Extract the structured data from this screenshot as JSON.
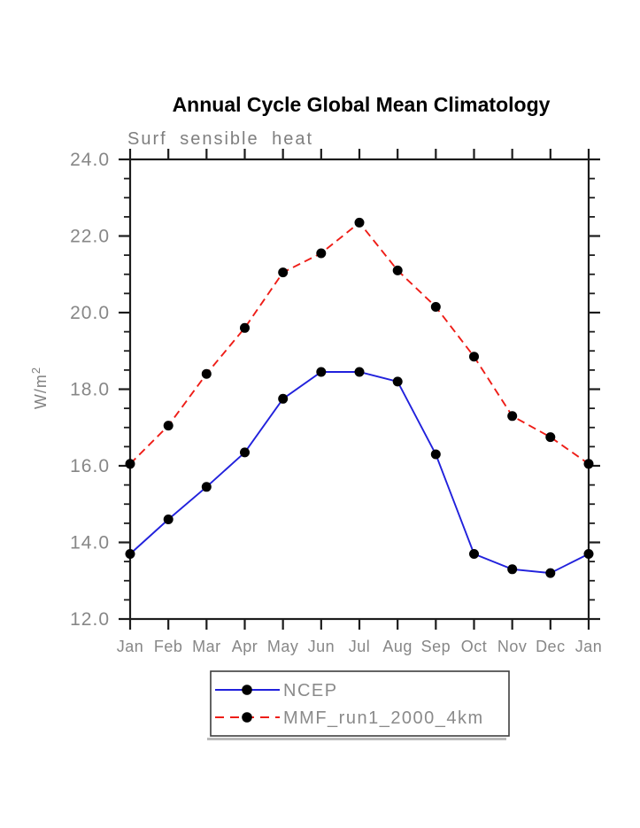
{
  "page": {
    "background_color": "#ffffff"
  },
  "chart_data": {
    "type": "line",
    "title": "Annual Cycle Global Mean Climatology",
    "subtitle": "Surf sensible heat",
    "ylabel": "W/m",
    "ylabel_sup": "2",
    "ylim": [
      12.0,
      24.0
    ],
    "ytick_major_interval": 2.0,
    "ytick_minor_interval": 0.5,
    "ytick_labels": [
      "12.0",
      "14.0",
      "16.0",
      "18.0",
      "20.0",
      "22.0",
      "24.0"
    ],
    "categories": [
      "Jan",
      "Feb",
      "Mar",
      "Apr",
      "May",
      "Jun",
      "Jul",
      "Aug",
      "Sep",
      "Oct",
      "Nov",
      "Dec",
      "Jan"
    ],
    "grid": false,
    "legend_position": "bottom-center",
    "axis_color": "#1c1c1c",
    "label_color": "#878787",
    "marker": "filled-circle",
    "marker_color": "#000000",
    "series": [
      {
        "name": "NCEP",
        "color": "#2121dc",
        "line_style": "solid",
        "values": [
          13.7,
          14.6,
          15.45,
          16.35,
          17.75,
          18.45,
          18.45,
          18.2,
          16.3,
          13.7,
          13.3,
          13.2,
          13.7
        ]
      },
      {
        "name": "MMF_run1_2000_4km",
        "color": "#ee1d17",
        "line_style": "dashed",
        "values": [
          16.05,
          17.05,
          18.4,
          19.6,
          21.05,
          21.55,
          22.35,
          21.1,
          20.15,
          18.85,
          17.3,
          16.75,
          16.05
        ]
      }
    ]
  }
}
